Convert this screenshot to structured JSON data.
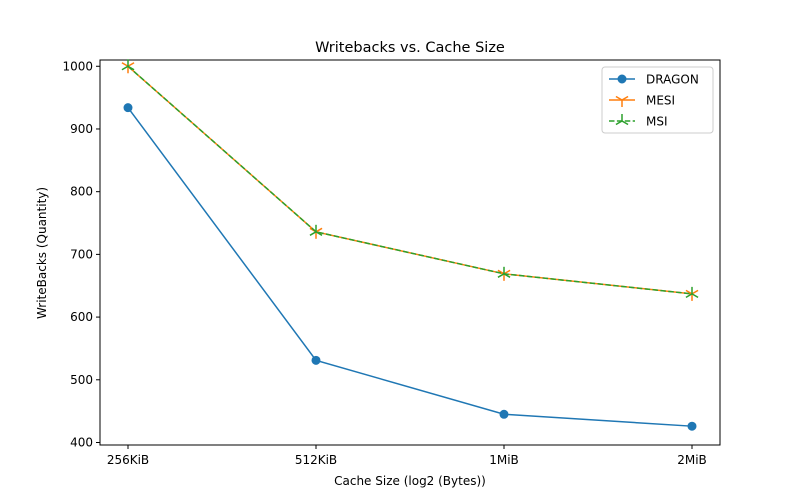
{
  "chart_data": {
    "type": "line",
    "title": "Writebacks vs. Cache Size",
    "xlabel": "Cache Size (log2 (Bytes))",
    "ylabel": "WriteBacks (Quantity)",
    "categories": [
      "256KiB",
      "512KiB",
      "1MiB",
      "2MiB"
    ],
    "ylim": [
      396,
      1010
    ],
    "yticks": [
      400,
      500,
      600,
      700,
      800,
      900,
      1000
    ],
    "grid": false,
    "legend_position": "top-right",
    "series": [
      {
        "name": "DRAGON",
        "values": [
          934,
          531,
          445,
          426
        ],
        "color": "#1f77b4",
        "marker": "circle",
        "line": "solid"
      },
      {
        "name": "MESI",
        "values": [
          1000,
          736,
          669,
          637
        ],
        "color": "#ff7f0e",
        "marker": "tri-down",
        "line": "solid"
      },
      {
        "name": "MSI",
        "values": [
          1000,
          736,
          669,
          637
        ],
        "color": "#2ca02c",
        "marker": "tri-up",
        "line": "dashed"
      }
    ]
  }
}
